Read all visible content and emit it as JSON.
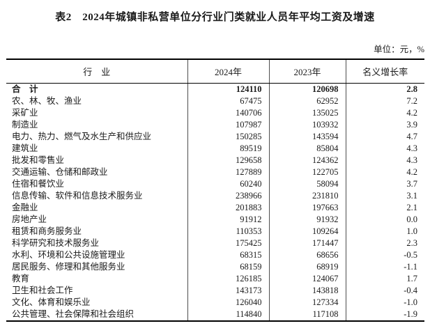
{
  "page": {
    "title": "表2　2024年城镇非私营单位分行业门类就业人员年平均工资及增速",
    "unit_note": "单位：元，%"
  },
  "table": {
    "headers": [
      "行　业",
      "2024年",
      "2023年",
      "名义增长率"
    ],
    "rows": [
      {
        "industry": "合　计",
        "y2024": "124110",
        "y2023": "120698",
        "growth": "2.8",
        "bold": true
      },
      {
        "industry": "农、林、牧、渔业",
        "y2024": "67475",
        "y2023": "62952",
        "growth": "7.2",
        "bold": false
      },
      {
        "industry": "采矿业",
        "y2024": "140706",
        "y2023": "135025",
        "growth": "4.2",
        "bold": false
      },
      {
        "industry": "制造业",
        "y2024": "107987",
        "y2023": "103932",
        "growth": "3.9",
        "bold": false
      },
      {
        "industry": "电力、热力、燃气及水生产和供应业",
        "y2024": "150285",
        "y2023": "143594",
        "growth": "4.7",
        "bold": false
      },
      {
        "industry": "建筑业",
        "y2024": "89519",
        "y2023": "85804",
        "growth": "4.3",
        "bold": false
      },
      {
        "industry": "批发和零售业",
        "y2024": "129658",
        "y2023": "124362",
        "growth": "4.3",
        "bold": false
      },
      {
        "industry": "交通运输、仓储和邮政业",
        "y2024": "127889",
        "y2023": "122705",
        "growth": "4.2",
        "bold": false
      },
      {
        "industry": "住宿和餐饮业",
        "y2024": "60240",
        "y2023": "58094",
        "growth": "3.7",
        "bold": false
      },
      {
        "industry": "信息传输、软件和信息技术服务业",
        "y2024": "238966",
        "y2023": "231810",
        "growth": "3.1",
        "bold": false
      },
      {
        "industry": "金融业",
        "y2024": "201883",
        "y2023": "197663",
        "growth": "2.1",
        "bold": false
      },
      {
        "industry": "房地产业",
        "y2024": "91912",
        "y2023": "91932",
        "growth": "0.0",
        "bold": false
      },
      {
        "industry": "租赁和商务服务业",
        "y2024": "110353",
        "y2023": "109264",
        "growth": "1.0",
        "bold": false
      },
      {
        "industry": "科学研究和技术服务业",
        "y2024": "175425",
        "y2023": "171447",
        "growth": "2.3",
        "bold": false
      },
      {
        "industry": "水利、环境和公共设施管理业",
        "y2024": "68315",
        "y2023": "68656",
        "growth": "-0.5",
        "bold": false
      },
      {
        "industry": "居民服务、修理和其他服务业",
        "y2024": "68159",
        "y2023": "68919",
        "growth": "-1.1",
        "bold": false
      },
      {
        "industry": "教育",
        "y2024": "126185",
        "y2023": "124067",
        "growth": "1.7",
        "bold": false
      },
      {
        "industry": "卫生和社会工作",
        "y2024": "143173",
        "y2023": "143818",
        "growth": "-0.4",
        "bold": false
      },
      {
        "industry": "文化、体育和娱乐业",
        "y2024": "126040",
        "y2023": "127334",
        "growth": "-1.0",
        "bold": false
      },
      {
        "industry": "公共管理、社会保障和社会组织",
        "y2024": "114840",
        "y2023": "117108",
        "growth": "-1.9",
        "bold": false
      }
    ]
  }
}
